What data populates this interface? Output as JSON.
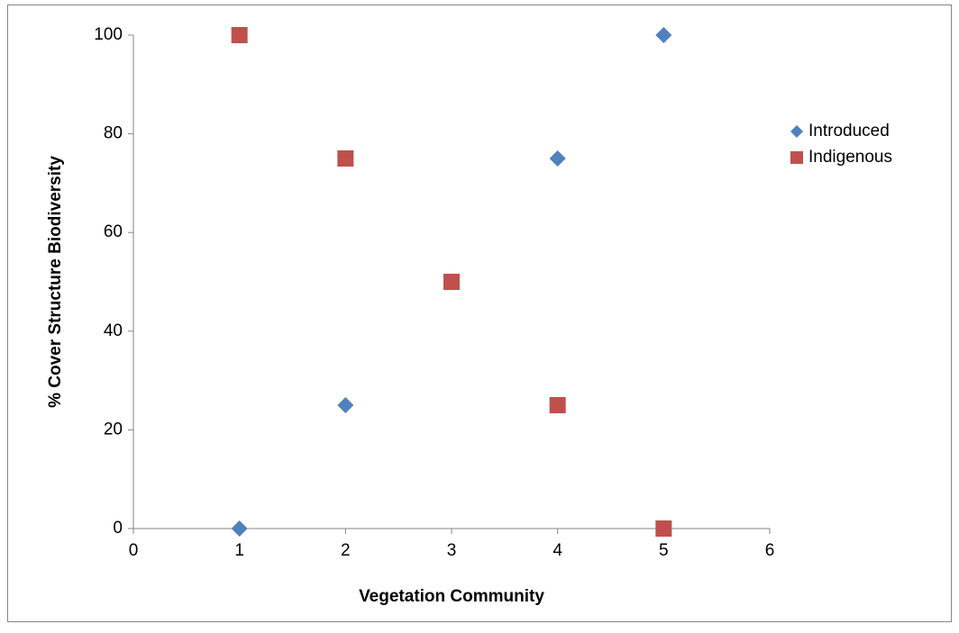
{
  "chart_data": {
    "type": "scatter",
    "x_label": "Vegetation Community",
    "y_label": "% Cover Structure Biodiversity",
    "xlim": [
      0,
      6
    ],
    "xticks": [
      0,
      1,
      2,
      3,
      4,
      5,
      6
    ],
    "ylim": [
      0,
      100
    ],
    "yticks": [
      0,
      20,
      40,
      60,
      80,
      100
    ],
    "grid": false,
    "legend": "right",
    "series": [
      {
        "name": "Introduced",
        "color": "#4f81bd",
        "marker": "diamond",
        "x": [
          1,
          2,
          4,
          5
        ],
        "values": [
          0,
          25,
          75,
          100
        ]
      },
      {
        "name": "Indigenous",
        "color": "#c0504d",
        "marker": "square",
        "x": [
          1,
          2,
          3,
          4,
          5
        ],
        "values": [
          100,
          75,
          50,
          25,
          0
        ]
      }
    ]
  }
}
